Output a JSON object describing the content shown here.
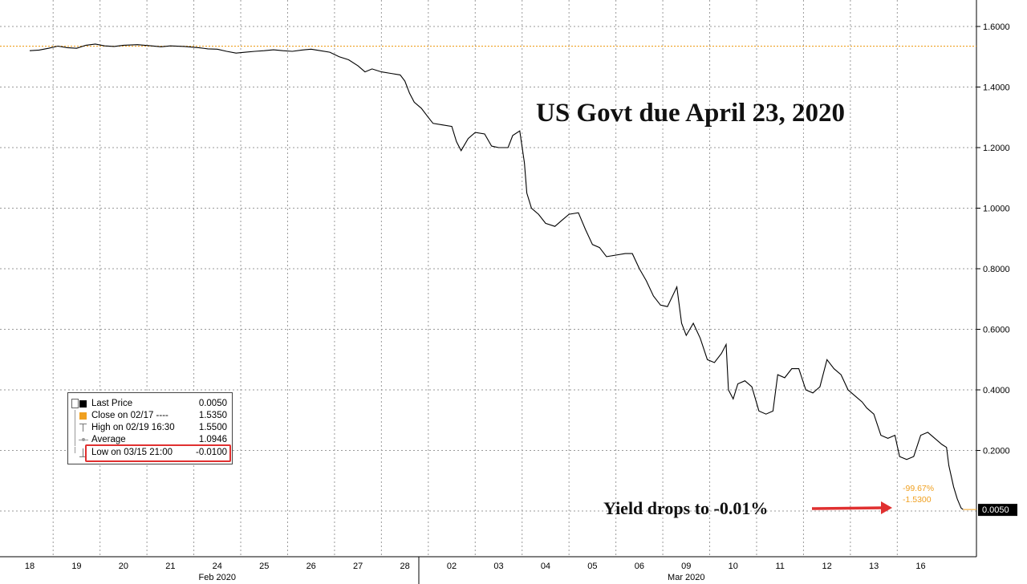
{
  "chart_data": {
    "type": "line",
    "title": "US Govt due April 23, 2020",
    "annotation": "Yield drops to -0.01%",
    "ylim": [
      -0.16,
      1.66
    ],
    "y_ticks": [
      "1.6000",
      "1.4000",
      "1.2000",
      "1.0000",
      "0.8000",
      "0.6000",
      "0.4000",
      "0.2000"
    ],
    "y_tick_values": [
      1.6,
      1.4,
      1.2,
      1.0,
      0.8,
      0.6,
      0.4,
      0.2
    ],
    "x_ticks": [
      "18",
      "19",
      "20",
      "21",
      "24",
      "25",
      "26",
      "27",
      "28",
      "02",
      "03",
      "04",
      "05",
      "06",
      "09",
      "10",
      "11",
      "12",
      "13",
      "16"
    ],
    "months": [
      {
        "label": "Feb 2020",
        "tick_index": 4
      },
      {
        "label": "Mar 2020",
        "tick_index": 14
      }
    ],
    "reference_line": {
      "name": "Close on 02/17",
      "value": 1.535
    },
    "last_value_label": "0.0050",
    "change_labels": [
      "-99.67%",
      "-1.5300"
    ],
    "series": [
      {
        "name": "Last Price",
        "points": [
          [
            0.0,
            1.52
          ],
          [
            0.2,
            1.522
          ],
          [
            0.4,
            1.528
          ],
          [
            0.6,
            1.535
          ],
          [
            0.8,
            1.53
          ],
          [
            1.0,
            1.528
          ],
          [
            1.2,
            1.538
          ],
          [
            1.4,
            1.542
          ],
          [
            1.6,
            1.536
          ],
          [
            1.8,
            1.534
          ],
          [
            2.0,
            1.538
          ],
          [
            2.3,
            1.54
          ],
          [
            2.6,
            1.536
          ],
          [
            2.8,
            1.533
          ],
          [
            3.0,
            1.536
          ],
          [
            3.3,
            1.534
          ],
          [
            3.6,
            1.53
          ],
          [
            3.8,
            1.526
          ],
          [
            4.0,
            1.525
          ],
          [
            4.2,
            1.518
          ],
          [
            4.4,
            1.512
          ],
          [
            4.6,
            1.515
          ],
          [
            4.8,
            1.518
          ],
          [
            5.0,
            1.52
          ],
          [
            5.2,
            1.523
          ],
          [
            5.4,
            1.52
          ],
          [
            5.6,
            1.518
          ],
          [
            5.8,
            1.522
          ],
          [
            6.0,
            1.525
          ],
          [
            6.2,
            1.52
          ],
          [
            6.4,
            1.515
          ],
          [
            6.6,
            1.5
          ],
          [
            6.8,
            1.49
          ],
          [
            7.0,
            1.47
          ],
          [
            7.15,
            1.45
          ],
          [
            7.3,
            1.46
          ],
          [
            7.5,
            1.45
          ],
          [
            7.7,
            1.445
          ],
          [
            7.9,
            1.44
          ],
          [
            8.0,
            1.42
          ],
          [
            8.1,
            1.38
          ],
          [
            8.2,
            1.35
          ],
          [
            8.35,
            1.33
          ],
          [
            8.5,
            1.3
          ],
          [
            8.6,
            1.28
          ],
          [
            8.8,
            1.275
          ],
          [
            9.0,
            1.27
          ],
          [
            9.1,
            1.22
          ],
          [
            9.2,
            1.19
          ],
          [
            9.35,
            1.23
          ],
          [
            9.5,
            1.25
          ],
          [
            9.7,
            1.245
          ],
          [
            9.85,
            1.205
          ],
          [
            10.0,
            1.2
          ],
          [
            10.2,
            1.2
          ],
          [
            10.3,
            1.24
          ],
          [
            10.45,
            1.255
          ],
          [
            10.55,
            1.15
          ],
          [
            10.6,
            1.05
          ],
          [
            10.7,
            1.0
          ],
          [
            10.85,
            0.98
          ],
          [
            11.0,
            0.95
          ],
          [
            11.2,
            0.94
          ],
          [
            11.35,
            0.96
          ],
          [
            11.5,
            0.98
          ],
          [
            11.7,
            0.985
          ],
          [
            11.85,
            0.93
          ],
          [
            12.0,
            0.88
          ],
          [
            12.15,
            0.87
          ],
          [
            12.3,
            0.84
          ],
          [
            12.5,
            0.845
          ],
          [
            12.7,
            0.85
          ],
          [
            12.85,
            0.85
          ],
          [
            13.0,
            0.8
          ],
          [
            13.15,
            0.76
          ],
          [
            13.3,
            0.71
          ],
          [
            13.45,
            0.68
          ],
          [
            13.6,
            0.675
          ],
          [
            13.8,
            0.74
          ],
          [
            13.9,
            0.62
          ],
          [
            14.0,
            0.58
          ],
          [
            14.15,
            0.62
          ],
          [
            14.3,
            0.57
          ],
          [
            14.45,
            0.5
          ],
          [
            14.6,
            0.49
          ],
          [
            14.75,
            0.52
          ],
          [
            14.85,
            0.55
          ],
          [
            14.9,
            0.4
          ],
          [
            15.0,
            0.37
          ],
          [
            15.1,
            0.42
          ],
          [
            15.25,
            0.43
          ],
          [
            15.4,
            0.41
          ],
          [
            15.55,
            0.33
          ],
          [
            15.7,
            0.32
          ],
          [
            15.85,
            0.33
          ],
          [
            15.95,
            0.45
          ],
          [
            16.1,
            0.44
          ],
          [
            16.25,
            0.47
          ],
          [
            16.4,
            0.47
          ],
          [
            16.55,
            0.4
          ],
          [
            16.7,
            0.39
          ],
          [
            16.85,
            0.41
          ],
          [
            17.0,
            0.5
          ],
          [
            17.15,
            0.47
          ],
          [
            17.3,
            0.45
          ],
          [
            17.45,
            0.4
          ],
          [
            17.6,
            0.38
          ],
          [
            17.75,
            0.36
          ],
          [
            17.85,
            0.34
          ],
          [
            18.0,
            0.32
          ],
          [
            18.15,
            0.25
          ],
          [
            18.3,
            0.24
          ],
          [
            18.45,
            0.25
          ],
          [
            18.55,
            0.18
          ],
          [
            18.7,
            0.17
          ],
          [
            18.85,
            0.18
          ],
          [
            19.0,
            0.25
          ],
          [
            19.15,
            0.26
          ],
          [
            19.3,
            0.24
          ],
          [
            19.45,
            0.22
          ],
          [
            19.55,
            0.21
          ],
          [
            19.6,
            0.15
          ],
          [
            19.7,
            0.08
          ],
          [
            19.78,
            0.04
          ],
          [
            19.86,
            0.01
          ],
          [
            19.9,
            0.005
          ]
        ]
      }
    ],
    "legend": [
      {
        "label": "Last Price",
        "value": "0.0050"
      },
      {
        "label": "Close on 02/17 ----",
        "value": "1.5350"
      },
      {
        "label": "High on 02/19 16:30",
        "value": "1.5500"
      },
      {
        "label": "Average",
        "value": "1.0946"
      },
      {
        "label": "Low on 03/15 21:00",
        "value": "-0.0100"
      }
    ],
    "grid": true,
    "legend_placement": "bottom-left",
    "colors": {
      "line": "#000000",
      "reference": "#f0a020",
      "grid": "#9a9a9a",
      "arrow": "#e03030",
      "highlight_box": "#e03030",
      "last_value_box": "#000000"
    }
  }
}
